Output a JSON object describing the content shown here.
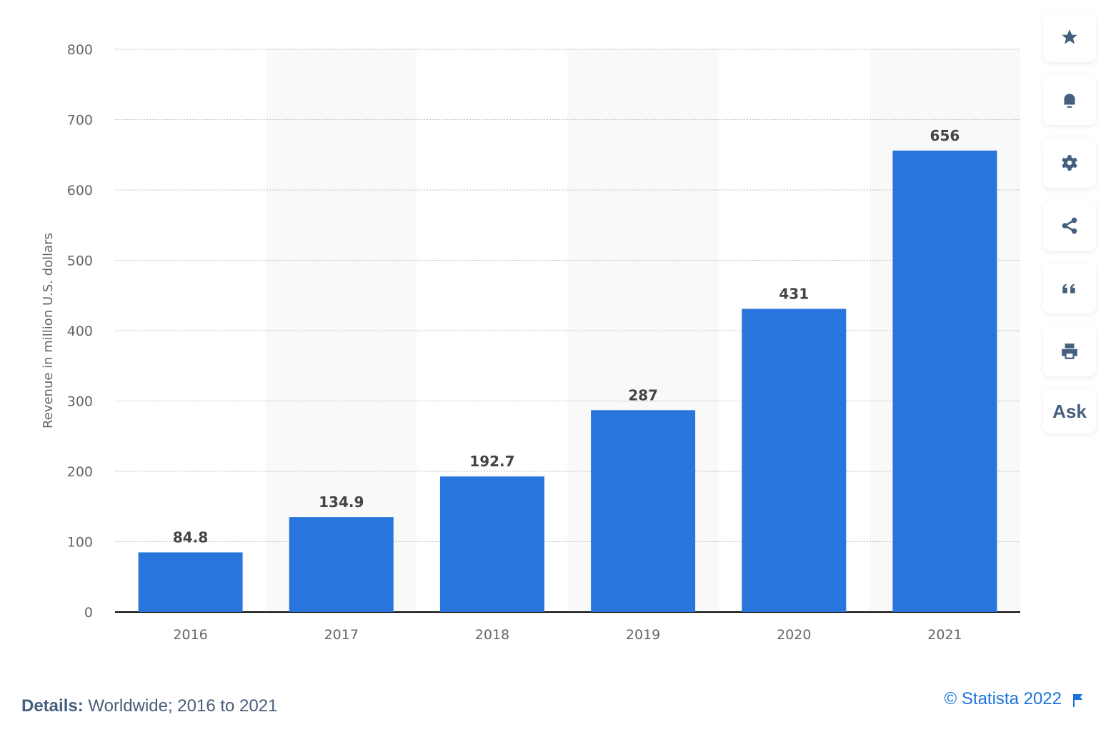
{
  "chart_data": {
    "type": "bar",
    "categories": [
      "2016",
      "2017",
      "2018",
      "2019",
      "2020",
      "2021"
    ],
    "values": [
      84.8,
      134.9,
      192.7,
      287,
      431,
      656
    ],
    "data_labels": [
      "84.8",
      "134.9",
      "192.7",
      "287",
      "431",
      "656"
    ],
    "title": "",
    "xlabel": "",
    "ylabel": "Revenue in million U.S. dollars",
    "ylim": [
      0,
      800
    ],
    "yticks": [
      0,
      100,
      200,
      300,
      400,
      500,
      600,
      700,
      800
    ],
    "grid": true,
    "bar_color": "#2876dd",
    "band_color": "#f9f9f9"
  },
  "sidebar": {
    "icons": [
      "star-icon",
      "bell-icon",
      "gear-icon",
      "share-icon",
      "quote-icon",
      "print-icon"
    ],
    "ask_label": "Ask",
    "icon_color": "#455f7f"
  },
  "footer": {
    "details_label": "Details:",
    "details_text": "Worldwide; 2016 to 2021",
    "credit": "© Statista 2022"
  }
}
